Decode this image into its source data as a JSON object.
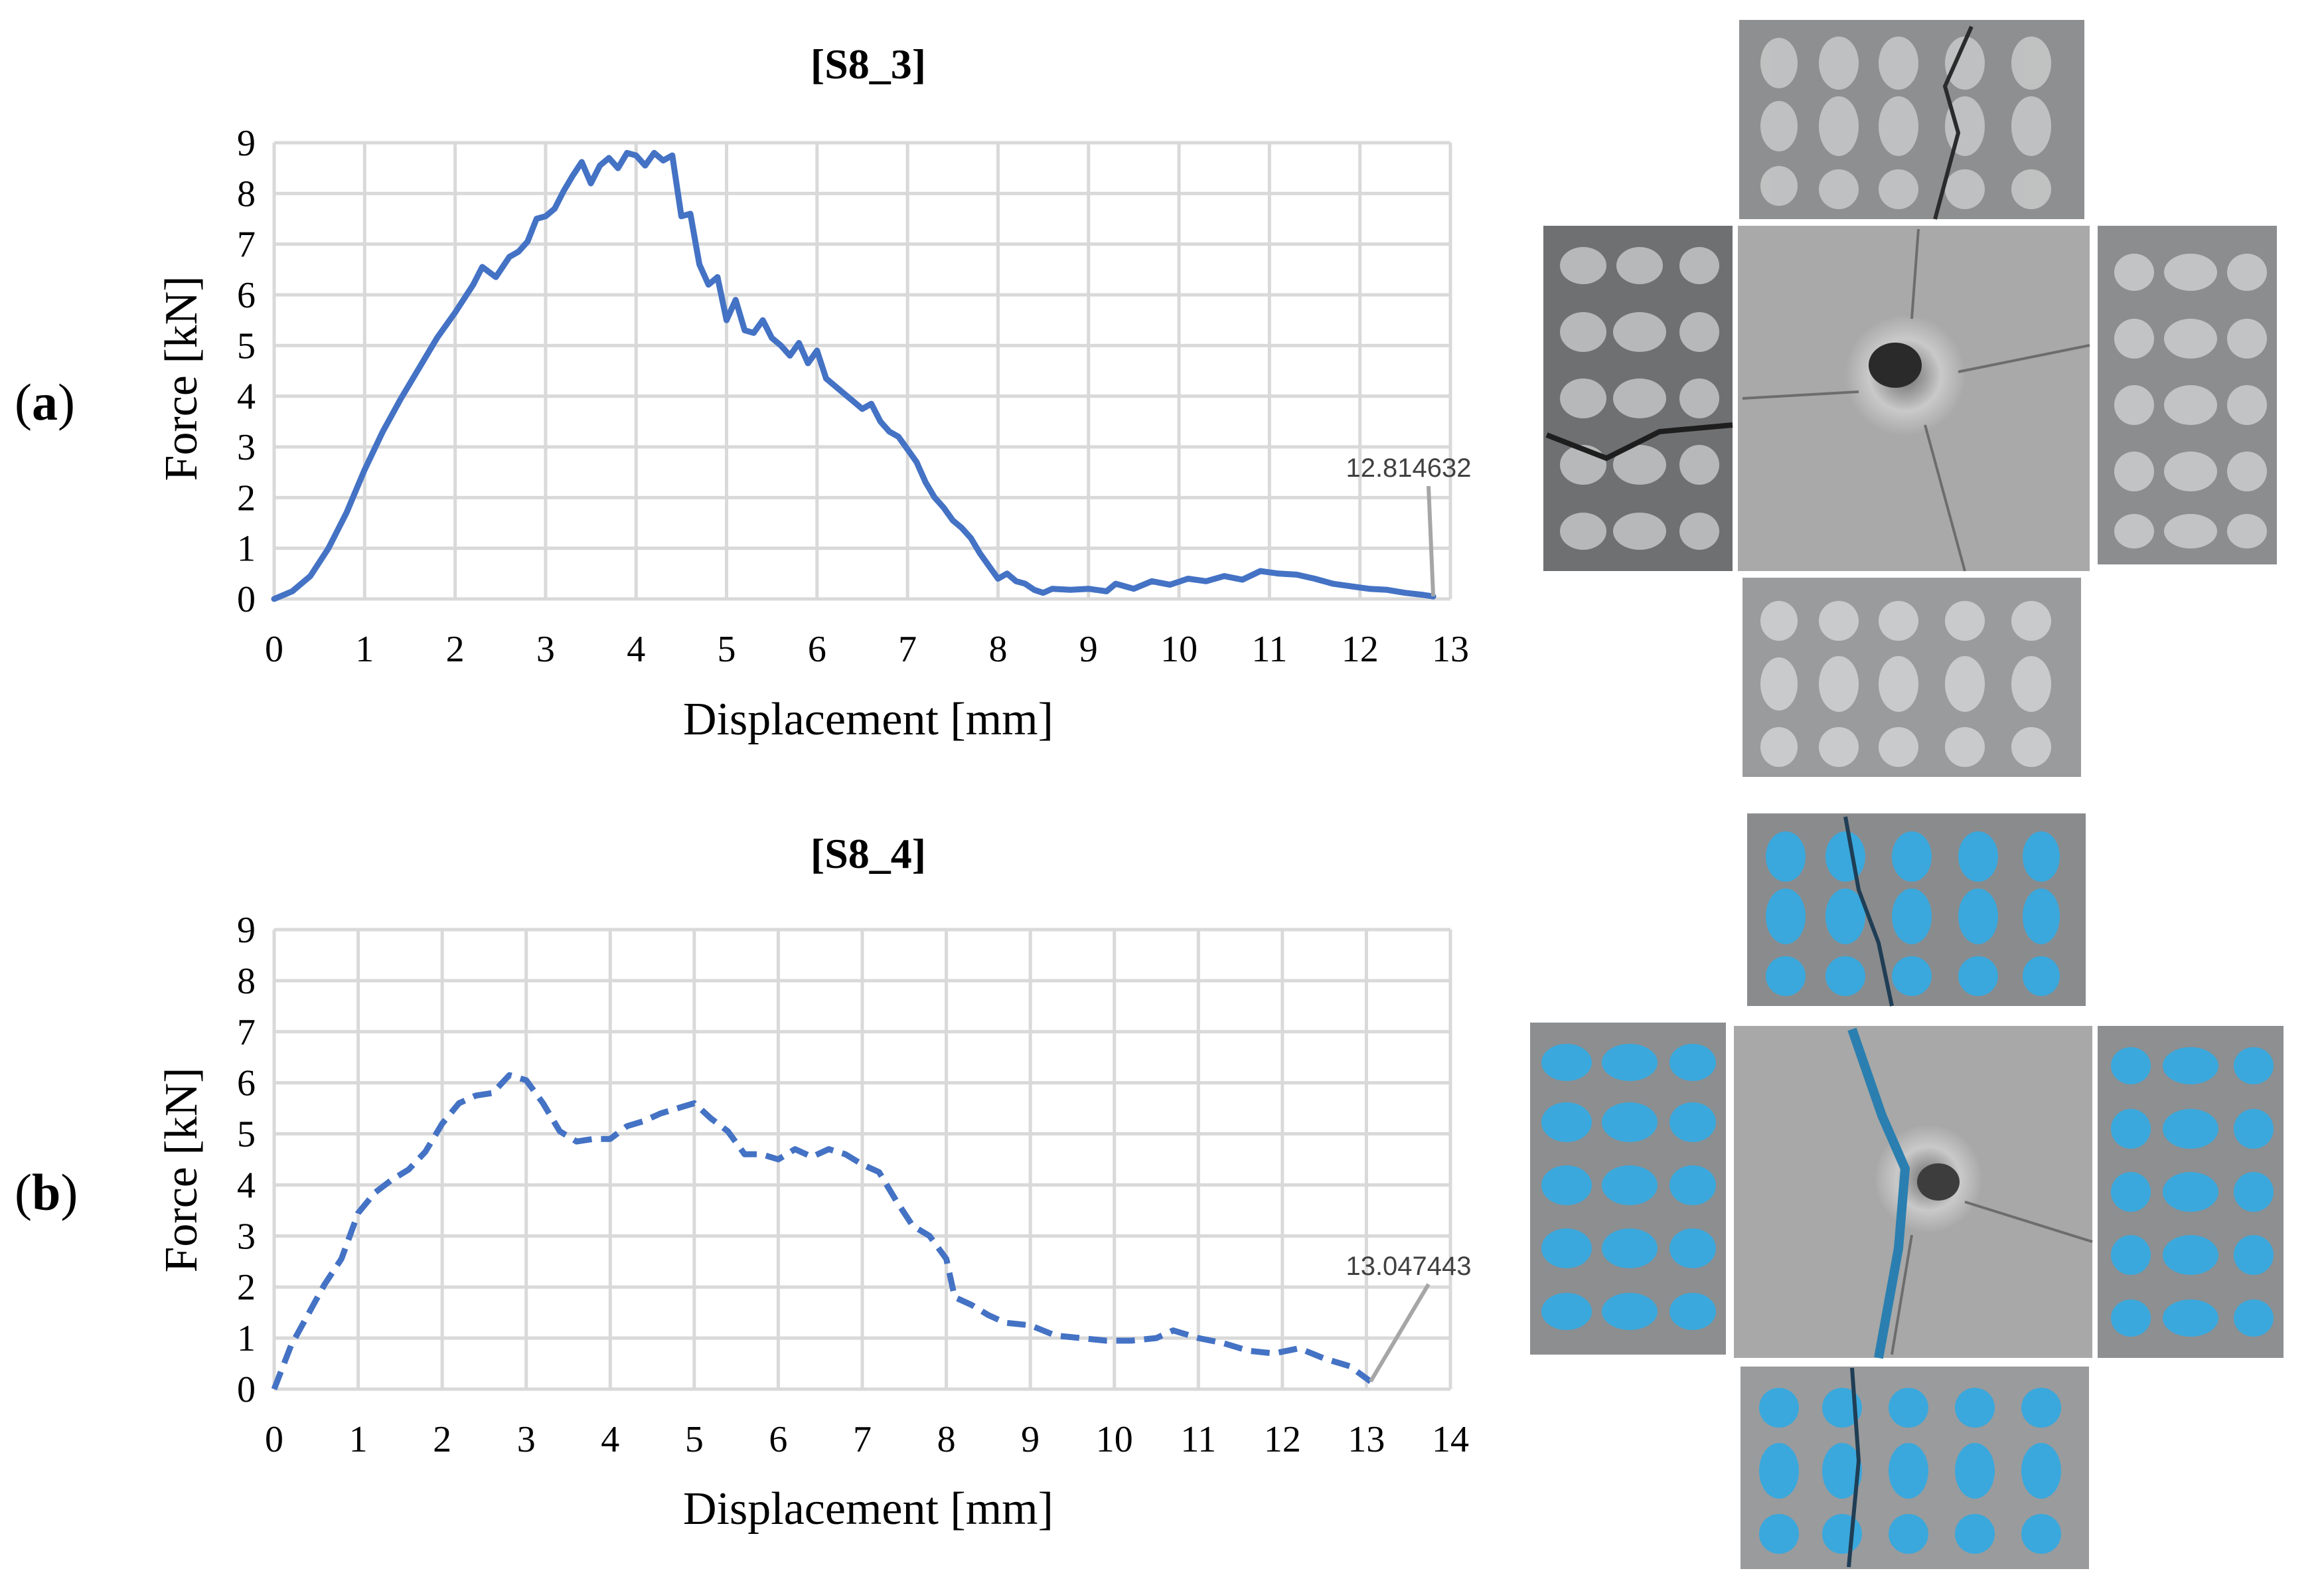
{
  "panels": [
    {
      "label_prefix": "(",
      "label_letter": "a",
      "label_suffix": ")"
    },
    {
      "label_prefix": "(",
      "label_letter": "b",
      "label_suffix": ")"
    }
  ],
  "colors": {
    "line": "#4472c4",
    "grid": "#d9d9d9",
    "callout": "#a6a6a6",
    "specimen_gray": "#8f9092",
    "specimen_blue": "#3aa8dc",
    "specimen_plate": "#a9aaa9"
  },
  "chart_data": [
    {
      "type": "line",
      "title": "[S8_3]",
      "xlabel": "Displacement [mm]",
      "ylabel": "Force [kN]",
      "xlim": [
        0,
        13
      ],
      "ylim": [
        0,
        9
      ],
      "xticks": [
        0,
        1,
        2,
        3,
        4,
        5,
        6,
        7,
        8,
        9,
        10,
        11,
        12,
        13
      ],
      "yticks": [
        0,
        1,
        2,
        3,
        4,
        5,
        6,
        7,
        8,
        9
      ],
      "grid": true,
      "line_style": "solid",
      "annotation": {
        "text": "12.814632",
        "x": 12.81,
        "y": 0.05
      },
      "series": [
        {
          "x": [
            0,
            0.2,
            0.4,
            0.6,
            0.8,
            1.0,
            1.2,
            1.4,
            1.6,
            1.8,
            2.0,
            2.2,
            2.3,
            2.45,
            2.6,
            2.7,
            2.8,
            2.9,
            3.0,
            3.1,
            3.2,
            3.3,
            3.4,
            3.5,
            3.6,
            3.7,
            3.8,
            3.9,
            4.0,
            4.1,
            4.2,
            4.3,
            4.4,
            4.5,
            4.6,
            4.7,
            4.8,
            4.9,
            5.0,
            5.1,
            5.2,
            5.3,
            5.4,
            5.5,
            5.6,
            5.7,
            5.8,
            5.9,
            6.0,
            6.1,
            6.2,
            6.3,
            6.4,
            6.5,
            6.6,
            6.7,
            6.8,
            6.9,
            7.0,
            7.1,
            7.2,
            7.3,
            7.4,
            7.5,
            7.6,
            7.7,
            7.8,
            7.9,
            8.0,
            8.1,
            8.2,
            8.3,
            8.4,
            8.5,
            8.6,
            8.8,
            9.0,
            9.2,
            9.3,
            9.5,
            9.7,
            9.9,
            10.1,
            10.3,
            10.5,
            10.7,
            10.9,
            11.1,
            11.3,
            11.5,
            11.7,
            11.9,
            12.1,
            12.3,
            12.5,
            12.7,
            12.81
          ],
          "y": [
            0,
            0.15,
            0.45,
            1.0,
            1.7,
            2.55,
            3.3,
            3.95,
            4.55,
            5.15,
            5.65,
            6.2,
            6.55,
            6.35,
            6.75,
            6.85,
            7.05,
            7.5,
            7.55,
            7.7,
            8.05,
            8.35,
            8.62,
            8.2,
            8.55,
            8.7,
            8.5,
            8.8,
            8.75,
            8.55,
            8.8,
            8.65,
            8.75,
            7.55,
            7.6,
            6.6,
            6.2,
            6.35,
            5.5,
            5.9,
            5.3,
            5.25,
            5.5,
            5.15,
            5.0,
            4.8,
            5.05,
            4.65,
            4.9,
            4.35,
            4.2,
            4.05,
            3.9,
            3.75,
            3.85,
            3.5,
            3.3,
            3.2,
            2.95,
            2.7,
            2.3,
            2.0,
            1.8,
            1.55,
            1.4,
            1.2,
            0.9,
            0.65,
            0.4,
            0.5,
            0.35,
            0.3,
            0.18,
            0.12,
            0.2,
            0.18,
            0.2,
            0.15,
            0.3,
            0.2,
            0.35,
            0.28,
            0.4,
            0.35,
            0.45,
            0.38,
            0.55,
            0.5,
            0.48,
            0.4,
            0.3,
            0.25,
            0.2,
            0.18,
            0.12,
            0.08,
            0.05
          ]
        }
      ]
    },
    {
      "type": "line",
      "title": "[S8_4]",
      "xlabel": "Displacement [mm]",
      "ylabel": "Force [kN]",
      "xlim": [
        0,
        14
      ],
      "ylim": [
        0,
        9
      ],
      "xticks": [
        0,
        1,
        2,
        3,
        4,
        5,
        6,
        7,
        8,
        9,
        10,
        11,
        12,
        13,
        14
      ],
      "yticks": [
        0,
        1,
        2,
        3,
        4,
        5,
        6,
        7,
        8,
        9
      ],
      "grid": true,
      "line_style": "dashed",
      "annotation": {
        "text": "13.047443",
        "x": 13.05,
        "y": 0.15
      },
      "series": [
        {
          "x": [
            0,
            0.2,
            0.4,
            0.6,
            0.8,
            1.0,
            1.2,
            1.4,
            1.6,
            1.8,
            2.0,
            2.2,
            2.4,
            2.6,
            2.8,
            3.0,
            3.2,
            3.4,
            3.6,
            3.8,
            4.0,
            4.2,
            4.4,
            4.6,
            4.8,
            5.0,
            5.2,
            5.4,
            5.6,
            5.8,
            6.0,
            6.2,
            6.4,
            6.6,
            6.8,
            7.0,
            7.2,
            7.4,
            7.6,
            7.8,
            8.0,
            8.1,
            8.3,
            8.5,
            8.7,
            9.0,
            9.3,
            9.6,
            9.9,
            10.2,
            10.5,
            10.7,
            11.0,
            11.3,
            11.6,
            11.9,
            12.2,
            12.5,
            12.8,
            13.05
          ],
          "y": [
            0,
            0.85,
            1.45,
            2.05,
            2.55,
            3.45,
            3.85,
            4.1,
            4.3,
            4.65,
            5.2,
            5.6,
            5.75,
            5.8,
            6.15,
            6.05,
            5.6,
            5.05,
            4.85,
            4.9,
            4.9,
            5.15,
            5.25,
            5.4,
            5.5,
            5.6,
            5.3,
            5.05,
            4.6,
            4.6,
            4.5,
            4.7,
            4.55,
            4.7,
            4.6,
            4.4,
            4.25,
            3.7,
            3.2,
            3.0,
            2.55,
            1.8,
            1.65,
            1.45,
            1.3,
            1.25,
            1.05,
            1.0,
            0.95,
            0.95,
            1.0,
            1.15,
            1.0,
            0.9,
            0.75,
            0.7,
            0.8,
            0.6,
            0.45,
            0.15
          ]
        }
      ]
    }
  ]
}
